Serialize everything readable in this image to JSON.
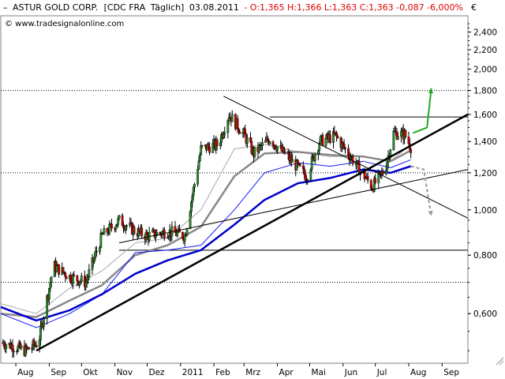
{
  "header": {
    "instrument": "ASTUR GOLD CORP.",
    "exchange": "[CDC FRA",
    "period": "Täglich]",
    "date": "03.08.2011",
    "ohlc": "- O:1,365 H:1,366 L:1,363 C:1,363 -0,087 -6,000%",
    "collapse_glyph": "–"
  },
  "watermark": "© www.tradesignalonline.com",
  "currency": "€",
  "chart_data": {
    "type": "candlestick",
    "scale": "log",
    "ylim": [
      0.47,
      2.6
    ],
    "y_ticks": [
      {
        "value": 2.4,
        "label": "2,400"
      },
      {
        "value": 2.2,
        "label": "2,200"
      },
      {
        "value": 2.0,
        "label": "2,000"
      },
      {
        "value": 1.8,
        "label": "1,800"
      },
      {
        "value": 1.6,
        "label": "1,600"
      },
      {
        "value": 1.4,
        "label": "1,400"
      },
      {
        "value": 1.2,
        "label": "1,200"
      },
      {
        "value": 1.0,
        "label": "1,000"
      },
      {
        "value": 0.8,
        "label": "0,800"
      },
      {
        "value": 0.6,
        "label": "0,600"
      }
    ],
    "x_ticks": [
      {
        "label": "Aug",
        "date": "2010-08-01"
      },
      {
        "label": "Sep",
        "date": "2010-09-01"
      },
      {
        "label": "Okt",
        "date": "2010-10-01"
      },
      {
        "label": "Nov",
        "date": "2010-11-01"
      },
      {
        "label": "Dez",
        "date": "2010-12-01"
      },
      {
        "label": "2011",
        "date": "2011-01-01"
      },
      {
        "label": "Feb",
        "date": "2011-02-01"
      },
      {
        "label": "Mrz",
        "date": "2011-03-01"
      },
      {
        "label": "Apr",
        "date": "2011-04-01"
      },
      {
        "label": "Mai",
        "date": "2011-05-01"
      },
      {
        "label": "Jun",
        "date": "2011-06-01"
      },
      {
        "label": "Jul",
        "date": "2011-07-01"
      },
      {
        "label": "Aug",
        "date": "2011-08-01"
      },
      {
        "label": "Sep",
        "date": "2011-09-01"
      }
    ],
    "xlim": [
      "2010-07-18",
      "2011-09-25"
    ],
    "price_path": [
      {
        "date": "2010-07-20",
        "close": 0.52
      },
      {
        "date": "2010-08-10",
        "close": 0.5
      },
      {
        "date": "2010-08-22",
        "close": 0.52
      },
      {
        "date": "2010-09-05",
        "close": 0.76
      },
      {
        "date": "2010-09-20",
        "close": 0.72
      },
      {
        "date": "2010-10-05",
        "close": 0.7
      },
      {
        "date": "2010-10-20",
        "close": 0.88
      },
      {
        "date": "2010-11-05",
        "close": 0.95
      },
      {
        "date": "2010-11-20",
        "close": 0.9
      },
      {
        "date": "2010-12-01",
        "close": 0.88
      },
      {
        "date": "2010-12-20",
        "close": 0.9
      },
      {
        "date": "2011-01-05",
        "close": 0.88
      },
      {
        "date": "2011-01-20",
        "close": 1.35
      },
      {
        "date": "2011-02-05",
        "close": 1.38
      },
      {
        "date": "2011-02-15",
        "close": 1.6
      },
      {
        "date": "2011-03-01",
        "close": 1.45
      },
      {
        "date": "2011-03-10",
        "close": 1.32
      },
      {
        "date": "2011-03-25",
        "close": 1.42
      },
      {
        "date": "2011-04-10",
        "close": 1.3
      },
      {
        "date": "2011-04-28",
        "close": 1.18
      },
      {
        "date": "2011-05-10",
        "close": 1.4
      },
      {
        "date": "2011-05-25",
        "close": 1.44
      },
      {
        "date": "2011-06-10",
        "close": 1.28
      },
      {
        "date": "2011-06-28",
        "close": 1.12
      },
      {
        "date": "2011-07-10",
        "close": 1.22
      },
      {
        "date": "2011-07-18",
        "close": 1.46
      },
      {
        "date": "2011-07-28",
        "close": 1.45
      },
      {
        "date": "2011-08-03",
        "close": 1.363
      }
    ],
    "moving_averages": [
      {
        "color": "#a8a8a8",
        "width": 1,
        "points": [
          [
            "2010-07-18",
            0.63
          ],
          [
            "2010-08-20",
            0.6
          ],
          [
            "2010-09-20",
            0.68
          ],
          [
            "2010-10-20",
            0.74
          ],
          [
            "2010-11-20",
            0.85
          ],
          [
            "2010-12-20",
            0.87
          ],
          [
            "2011-01-20",
            1.0
          ],
          [
            "2011-02-20",
            1.35
          ],
          [
            "2011-03-20",
            1.38
          ],
          [
            "2011-04-20",
            1.33
          ],
          [
            "2011-05-20",
            1.3
          ],
          [
            "2011-06-20",
            1.3
          ],
          [
            "2011-07-15",
            1.27
          ],
          [
            "2011-08-03",
            1.38
          ]
        ]
      },
      {
        "color": "#888888",
        "width": 2.5,
        "points": [
          [
            "2010-07-18",
            0.6
          ],
          [
            "2010-08-20",
            0.59
          ],
          [
            "2010-09-20",
            0.64
          ],
          [
            "2010-10-20",
            0.69
          ],
          [
            "2010-11-20",
            0.8
          ],
          [
            "2010-12-20",
            0.84
          ],
          [
            "2011-01-20",
            0.92
          ],
          [
            "2011-02-20",
            1.18
          ],
          [
            "2011-03-20",
            1.32
          ],
          [
            "2011-04-20",
            1.33
          ],
          [
            "2011-05-20",
            1.31
          ],
          [
            "2011-06-20",
            1.3
          ],
          [
            "2011-07-15",
            1.27
          ],
          [
            "2011-08-03",
            1.34
          ]
        ]
      },
      {
        "color": "#1a1aff",
        "width": 1,
        "points": [
          [
            "2010-07-18",
            0.6
          ],
          [
            "2010-08-20",
            0.56
          ],
          [
            "2010-09-20",
            0.6
          ],
          [
            "2010-10-20",
            0.66
          ],
          [
            "2010-11-20",
            0.81
          ],
          [
            "2010-12-20",
            0.82
          ],
          [
            "2011-01-20",
            0.84
          ],
          [
            "2011-02-20",
            1.0
          ],
          [
            "2011-03-20",
            1.2
          ],
          [
            "2011-04-20",
            1.26
          ],
          [
            "2011-05-20",
            1.24
          ],
          [
            "2011-06-20",
            1.27
          ],
          [
            "2011-07-15",
            1.23
          ],
          [
            "2011-08-03",
            1.28
          ]
        ]
      },
      {
        "color": "#0000cc",
        "width": 2.5,
        "points": [
          [
            "2010-07-18",
            0.62
          ],
          [
            "2010-08-20",
            0.58
          ],
          [
            "2010-09-20",
            0.61
          ],
          [
            "2010-10-20",
            0.66
          ],
          [
            "2010-11-20",
            0.73
          ],
          [
            "2010-12-20",
            0.78
          ],
          [
            "2011-01-20",
            0.82
          ],
          [
            "2011-02-20",
            0.93
          ],
          [
            "2011-03-20",
            1.05
          ],
          [
            "2011-04-20",
            1.14
          ],
          [
            "2011-05-20",
            1.17
          ],
          [
            "2011-06-20",
            1.22
          ],
          [
            "2011-07-15",
            1.2
          ],
          [
            "2011-08-03",
            1.24
          ]
        ]
      }
    ],
    "horizontal_lines": [
      {
        "value": 1.8,
        "style": "dotted",
        "color": "#000000"
      },
      {
        "value": 1.58,
        "style": "solid",
        "color": "#000000",
        "from": "2011-03-25",
        "to": "2011-09-25"
      },
      {
        "value": 1.2,
        "style": "dotted",
        "color": "#000000"
      },
      {
        "value": 0.82,
        "style": "solid",
        "color": "#000000",
        "from": "2010-11-05",
        "to": "2011-09-25"
      },
      {
        "value": 0.7,
        "style": "dotted",
        "color": "#000000"
      }
    ],
    "trend_lines": [
      {
        "color": "#000000",
        "width": 2.5,
        "from": [
          "2010-08-20",
          0.5
        ],
        "to": [
          "2011-09-25",
          1.6
        ]
      },
      {
        "color": "#000000",
        "width": 1,
        "from": [
          "2011-02-10",
          1.75
        ],
        "to": [
          "2011-09-25",
          0.96
        ]
      },
      {
        "color": "#000000",
        "width": 1,
        "from": [
          "2010-11-05",
          0.85
        ],
        "to": [
          "2011-09-25",
          1.22
        ]
      }
    ],
    "forecast_arrows": [
      {
        "color": "#22aa22",
        "style": "solid",
        "points": [
          [
            "2011-08-05",
            1.46
          ],
          [
            "2011-08-18",
            1.5
          ],
          [
            "2011-08-22",
            1.82
          ]
        ]
      },
      {
        "color": "#999999",
        "style": "dashed",
        "points": [
          [
            "2011-08-03",
            1.24
          ],
          [
            "2011-08-15",
            1.22
          ],
          [
            "2011-08-22",
            0.97
          ]
        ]
      }
    ]
  }
}
